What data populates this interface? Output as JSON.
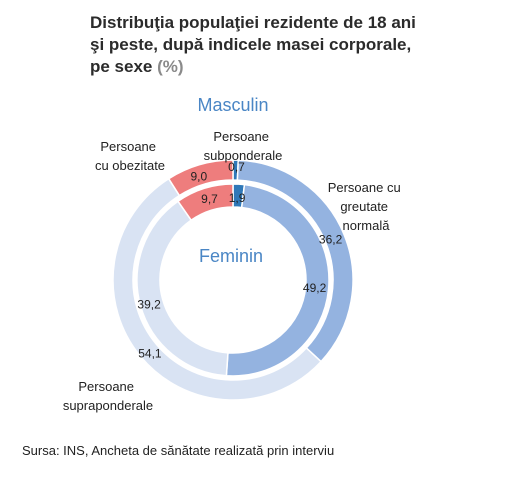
{
  "title": {
    "line1": "Distribuţia populaţiei rezidente de 18 ani",
    "line2": "şi peste, după indicele masei corporale,",
    "line3": "pe sexe",
    "unit": "(%)"
  },
  "source": "Sursa: INS, Ancheta de sănătate realizată prin interviu",
  "chart_data": {
    "type": "pie",
    "subtype": "nested-donut",
    "categories": [
      "Persoane subponderale",
      "Persoane cu greutate normală",
      "Persoane supraponderale",
      "Persoane cu obezitate"
    ],
    "category_labels": {
      "underweight": [
        "Persoane",
        "subponderale"
      ],
      "normal": [
        "Persoane cu",
        "greutate",
        "normală"
      ],
      "overweight": [
        "Persoane",
        "supraponderale"
      ],
      "obese": [
        "Persoane",
        "cu obezitate"
      ]
    },
    "series": [
      {
        "name": "Masculin",
        "ring": "outer",
        "values": [
          0.7,
          36.2,
          54.1,
          9.0
        ],
        "labels": [
          "0,7",
          "36,2",
          "54,1",
          "9,0"
        ]
      },
      {
        "name": "Feminin",
        "ring": "inner",
        "values": [
          1.9,
          49.2,
          39.2,
          9.7
        ],
        "labels": [
          "1,9",
          "49,2",
          "39,2",
          "9,7"
        ]
      }
    ],
    "colors": [
      "#2f78b8",
      "#94b3e0",
      "#d9e3f3",
      "#ee7d7d"
    ],
    "ring_title_color": "#4a86c5",
    "legend": "none"
  }
}
